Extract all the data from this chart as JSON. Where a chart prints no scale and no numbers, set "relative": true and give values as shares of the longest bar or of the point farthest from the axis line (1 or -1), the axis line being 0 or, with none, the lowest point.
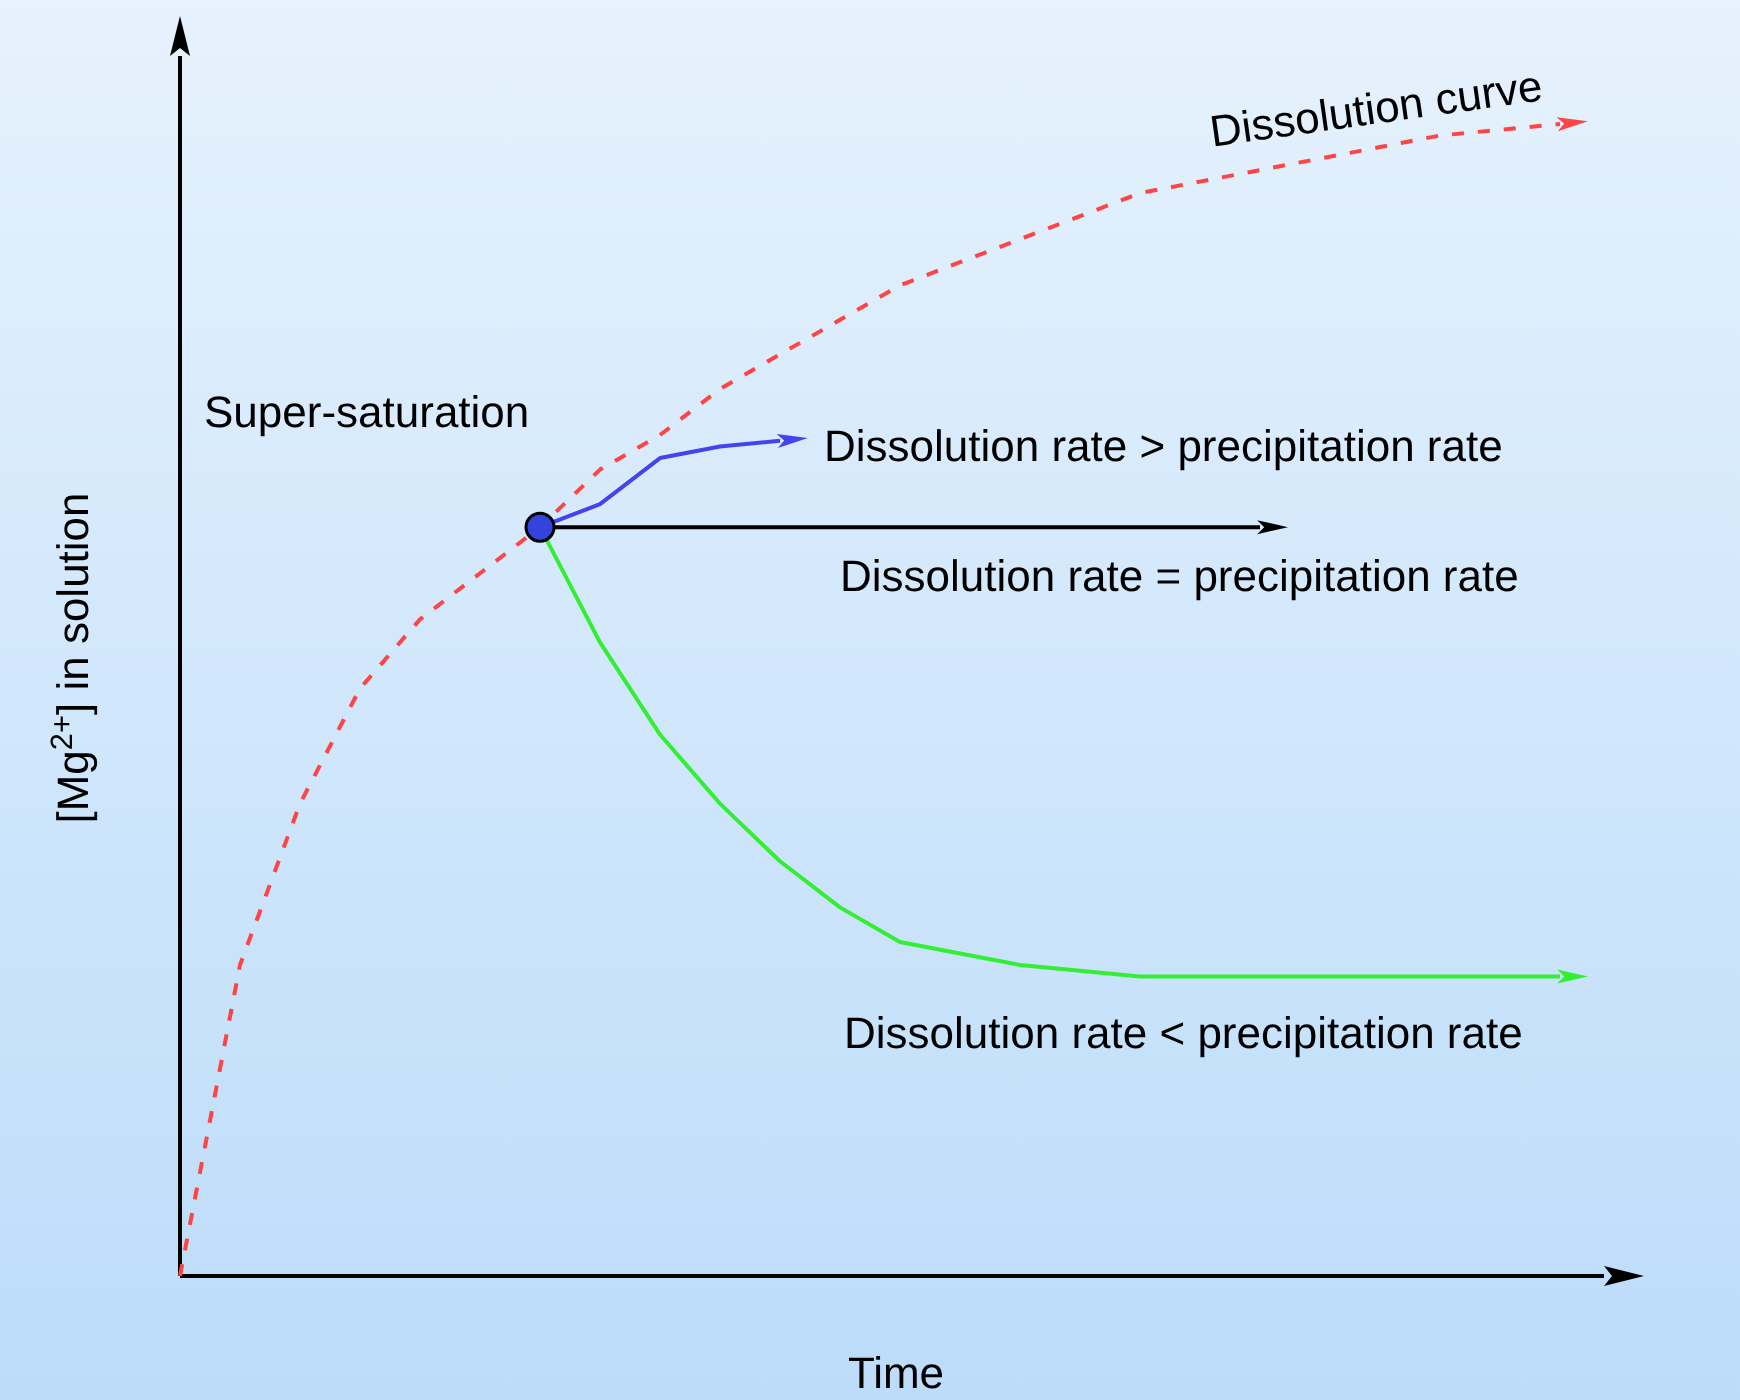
{
  "chart_data": {
    "type": "line",
    "relative": true,
    "xlabel": "Time",
    "ylabel": "[Mg$^{2+}$] in solution",
    "categories": [
      null,
      null,
      null,
      null,
      null,
      null,
      null,
      null,
      null,
      null,
      null,
      null,
      null,
      null,
      null,
      null,
      null,
      null,
      null,
      null,
      null,
      null,
      null,
      null
    ],
    "marker": "none",
    "series": [
      {
        "name": "Dissolution curve",
        "color": "#ff4444",
        "line_style": "dashed",
        "values": [
          0,
          0.27,
          0.41,
          0.51,
          0.57,
          0.61,
          0.65,
          0.7,
          0.73,
          0.77,
          0.8,
          0.83,
          0.86,
          0.88,
          0.9,
          0.92,
          0.94,
          0.95,
          0.96,
          0.97,
          0.98,
          0.99,
          0.995,
          1
        ]
      },
      {
        "name": "Dissolution rate > precipitation rate",
        "color": "#4444ee",
        "values": [
          null,
          null,
          null,
          null,
          null,
          null,
          0.65,
          0.67,
          0.71,
          0.72,
          0.725,
          null,
          null,
          null,
          null,
          null,
          null,
          null,
          null,
          null,
          null,
          null,
          null,
          null
        ]
      },
      {
        "name": "Dissolution rate = precipitation rate",
        "color": "#000000",
        "values": [
          null,
          null,
          null,
          null,
          null,
          null,
          0.65,
          0.65,
          0.65,
          0.65,
          0.65,
          0.65,
          0.65,
          0.65,
          0.65,
          0.65,
          0.65,
          0.65,
          0.65,
          null,
          null,
          null,
          null,
          null
        ]
      },
      {
        "name": "Dissolution rate < precipitation rate",
        "color": "#33ee33",
        "values": [
          null,
          null,
          null,
          null,
          null,
          null,
          0.65,
          0.55,
          0.47,
          0.41,
          0.36,
          0.32,
          0.29,
          0.28,
          0.27,
          0.265,
          0.26,
          0.26,
          0.26,
          0.26,
          0.26,
          0.26,
          0.26,
          0.26
        ]
      }
    ],
    "annotations": [
      "Super-saturation"
    ]
  }
}
